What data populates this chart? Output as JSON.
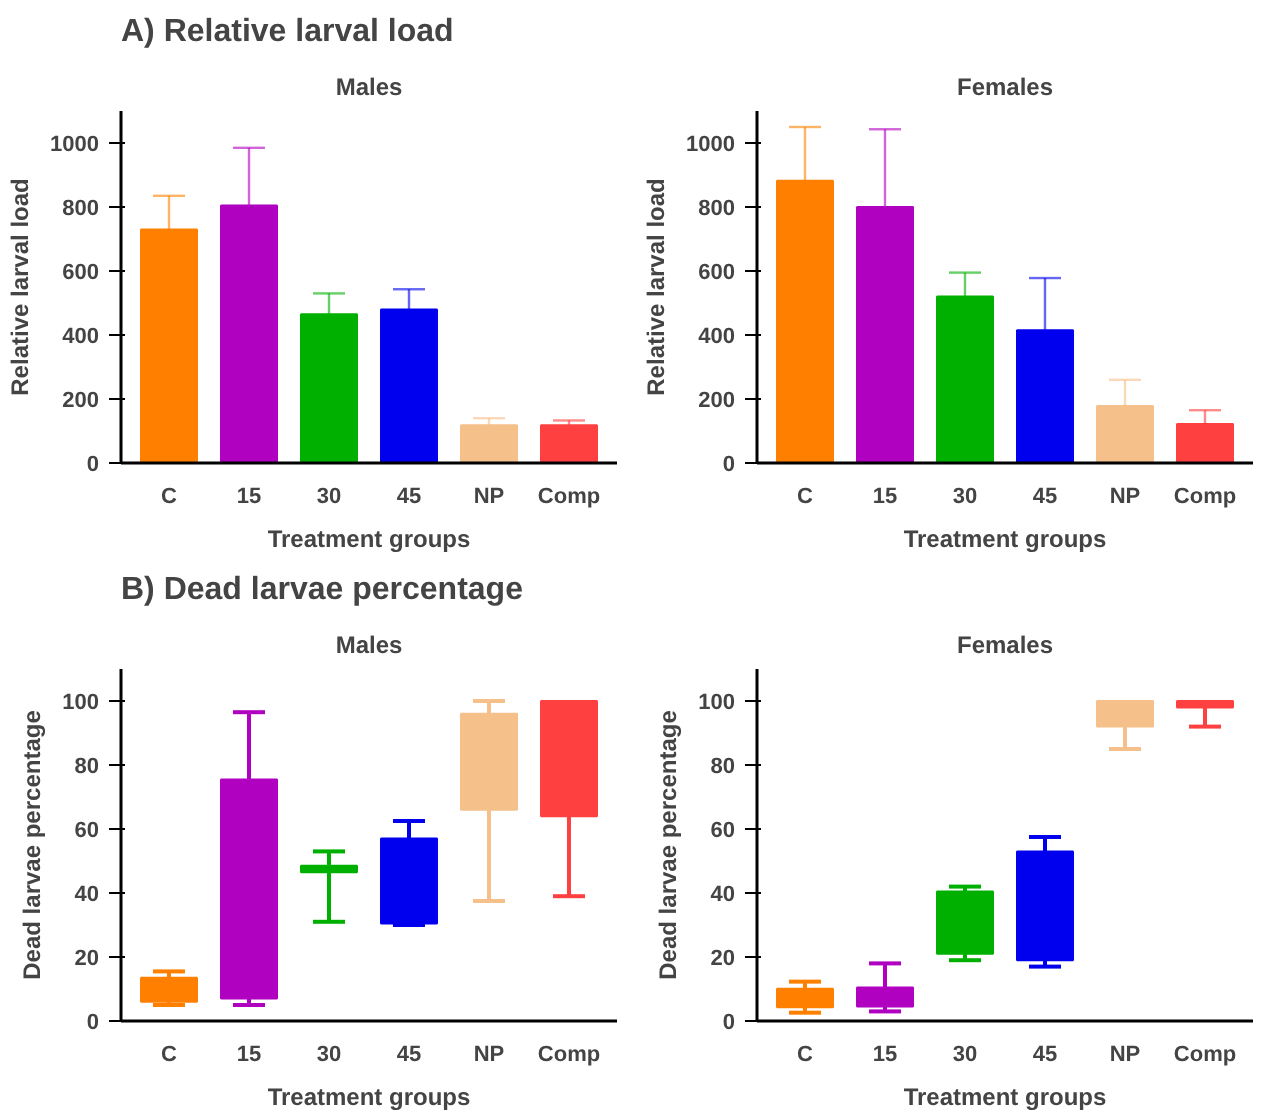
{
  "chart_data": [
    {
      "type": "bar",
      "title": "Males",
      "annotations": [
        "A) Relative larval load"
      ],
      "xlabel": "Treatment groups",
      "ylabel": "Relative larval load",
      "categories": [
        "C",
        "15",
        "30",
        "45",
        "NP",
        "Comp"
      ],
      "values": [
        730,
        805,
        465,
        480,
        118,
        118
      ],
      "colors": [
        "#ff8000",
        "#b000c0",
        "#00b000",
        "#0000ee",
        "#f5c08a",
        "#ff4040"
      ],
      "errors": [
        [
          730,
          835
        ],
        [
          805,
          985
        ],
        [
          465,
          530
        ],
        [
          480,
          543
        ],
        [
          118,
          140
        ],
        [
          118,
          133
        ]
      ],
      "ylim": [
        0,
        1100
      ],
      "yticks": [
        0,
        200,
        400,
        600,
        800,
        1000
      ],
      "grid": false
    },
    {
      "type": "bar",
      "title": "Females",
      "xlabel": "Treatment groups",
      "ylabel": "Relative larval load",
      "categories": [
        "C",
        "15",
        "30",
        "45",
        "NP",
        "Comp"
      ],
      "values": [
        882,
        800,
        520,
        415,
        178,
        122
      ],
      "colors": [
        "#ff8000",
        "#b000c0",
        "#00b000",
        "#0000ee",
        "#f5c08a",
        "#ff4040"
      ],
      "errors": [
        [
          882,
          1050
        ],
        [
          800,
          1043
        ],
        [
          520,
          595
        ],
        [
          415,
          578
        ],
        [
          178,
          260
        ],
        [
          122,
          165
        ]
      ],
      "ylim": [
        0,
        1100
      ],
      "yticks": [
        0,
        200,
        400,
        600,
        800,
        1000
      ],
      "grid": false
    },
    {
      "type": "box",
      "title": "Males",
      "annotations": [
        "B) Dead larvae percentage"
      ],
      "xlabel": "Treatment groups",
      "ylabel": "Dead larvae percentage",
      "categories": [
        "C",
        "15",
        "30",
        "45",
        "NP",
        "Comp"
      ],
      "colors": [
        "#ff8000",
        "#b000c0",
        "#00b000",
        "#0000ee",
        "#f5c08a",
        "#ff4040"
      ],
      "boxes": [
        {
          "low": 5,
          "q1": 6,
          "median": 9,
          "q3": 13.5,
          "high": 15.5
        },
        {
          "low": 5,
          "q1": 7,
          "median": 40,
          "q3": 75.5,
          "high": 96.5
        },
        {
          "low": 31,
          "q1": 46.5,
          "median": 47.5,
          "q3": 48.5,
          "high": 53
        },
        {
          "low": 30,
          "q1": 30.5,
          "median": 40,
          "q3": 57,
          "high": 62.5
        },
        {
          "low": 37.5,
          "q1": 66,
          "median": 85,
          "q3": 96,
          "high": 100
        },
        {
          "low": 39,
          "q1": 64,
          "median": 90,
          "q3": 100,
          "high": 100
        }
      ],
      "ylim": [
        0,
        110
      ],
      "yticks": [
        0,
        20,
        40,
        60,
        80,
        100
      ],
      "grid": false
    },
    {
      "type": "box",
      "title": "Females",
      "xlabel": "Treatment groups",
      "ylabel": "Dead larvae percentage",
      "categories": [
        "C",
        "15",
        "30",
        "45",
        "NP",
        "Comp"
      ],
      "colors": [
        "#ff8000",
        "#b000c0",
        "#00b000",
        "#0000ee",
        "#f5c08a",
        "#ff4040"
      ],
      "boxes": [
        {
          "low": 2.6,
          "q1": 4.3,
          "median": 7,
          "q3": 10.1,
          "high": 12.3
        },
        {
          "low": 3,
          "q1": 4.5,
          "median": 7,
          "q3": 10.5,
          "high": 18
        },
        {
          "low": 19,
          "q1": 21,
          "median": 30,
          "q3": 40.5,
          "high": 42
        },
        {
          "low": 17,
          "q1": 19,
          "median": 35,
          "q3": 53,
          "high": 57.5
        },
        {
          "low": 85,
          "q1": 92,
          "median": 96,
          "q3": 100,
          "high": 100
        },
        {
          "low": 92,
          "q1": 98,
          "median": 99,
          "q3": 100,
          "high": 100
        }
      ],
      "ylim": [
        0,
        110
      ],
      "yticks": [
        0,
        20,
        40,
        60,
        80,
        100
      ],
      "grid": false
    }
  ]
}
